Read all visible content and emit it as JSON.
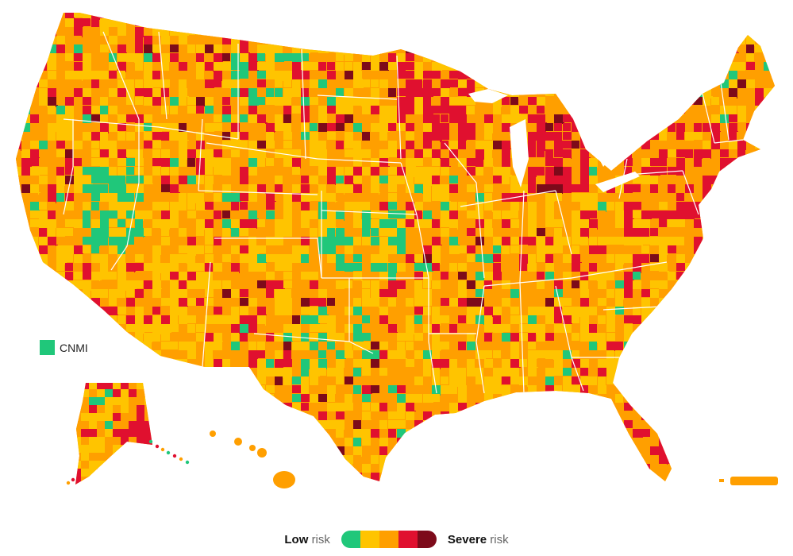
{
  "colors": {
    "low": "#20c77a",
    "moderate": "#ffc400",
    "elevated": "#ff9f00",
    "high": "#e0102f",
    "severe": "#7d0a1a",
    "state_border": "#ffffff"
  },
  "map": {
    "regions": [
      {
        "name": "Contiguous United States",
        "dominant_level": "elevated"
      },
      {
        "name": "Alaska",
        "dominant_level": "elevated"
      },
      {
        "name": "Hawaii",
        "dominant_level": "elevated"
      },
      {
        "name": "Puerto Rico",
        "dominant_level": "elevated"
      }
    ],
    "inset_label": {
      "text": "CNMI",
      "level": "low"
    }
  },
  "legend": {
    "low_word": "Low",
    "low_suffix": "risk",
    "severe_word": "Severe",
    "severe_suffix": "risk",
    "levels": [
      "low",
      "moderate",
      "elevated",
      "high",
      "severe"
    ]
  }
}
